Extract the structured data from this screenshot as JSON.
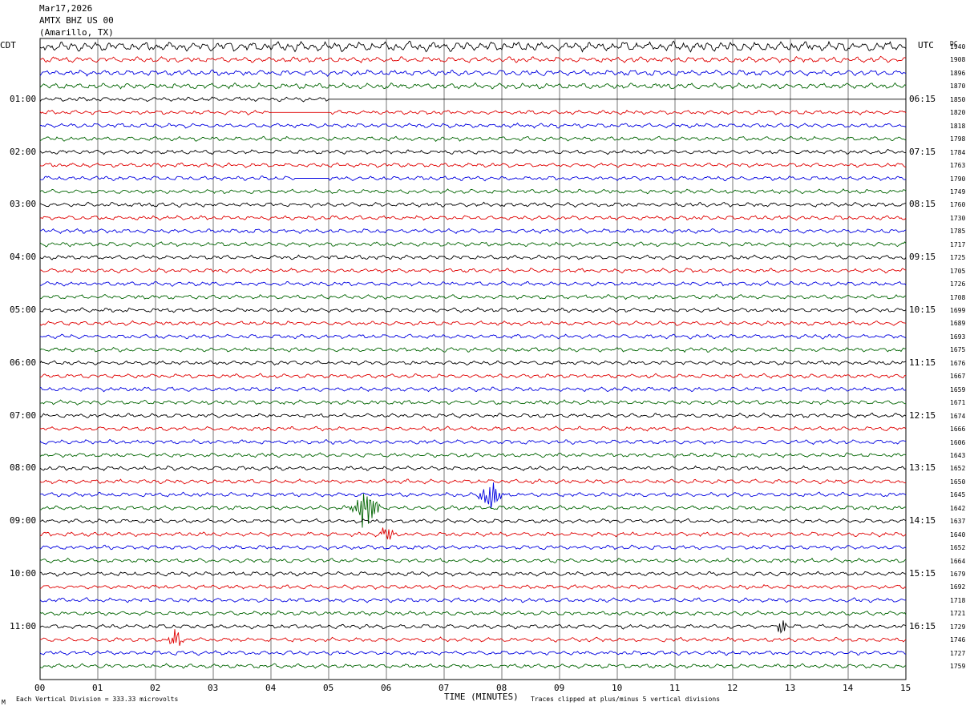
{
  "header": {
    "date": "Mar17,2026",
    "station": "AMTX BHZ US 00",
    "location": "(Amarillo, TX)"
  },
  "labels": {
    "left_zone": "CDT",
    "right_zone": "UTC",
    "dc_header": "DC",
    "xlabel": "TIME (MINUTES)",
    "scale_note": "Each Vertical Division =  333.33 microvolts",
    "clip_note": "Traces clipped at plus/minus 5 vertical divisions",
    "corner_mark": "M"
  },
  "chart_data": {
    "type": "line",
    "title": "",
    "xlabel": "TIME (MINUTES)",
    "ylabel": "",
    "x_ticks": [
      "00",
      "01",
      "02",
      "03",
      "04",
      "05",
      "06",
      "07",
      "08",
      "09",
      "10",
      "11",
      "12",
      "13",
      "14",
      "15"
    ],
    "xlim": [
      0,
      15
    ],
    "grid": "vertical lines every minute",
    "trace_colors": [
      "#000000",
      "#e00000",
      "#0000e0",
      "#006400"
    ],
    "num_traces": 48,
    "trace_minutes": 15,
    "left_time_labels": [
      "01:00",
      "02:00",
      "03:00",
      "04:00",
      "05:00",
      "06:00",
      "07:00",
      "08:00",
      "09:00",
      "10:00",
      "11:00"
    ],
    "right_time_labels": [
      "06:15",
      "07:15",
      "08:15",
      "09:15",
      "10:15",
      "11:15",
      "12:15",
      "13:15",
      "14:15",
      "15:15",
      "16:15"
    ],
    "dc_offsets": [
      "1940",
      "1908",
      "1896",
      "1870",
      "1850",
      "1820",
      "1818",
      "1798",
      "1784",
      "1763",
      "1790",
      "1749",
      "1760",
      "1730",
      "1785",
      "1717",
      "1725",
      "1705",
      "1726",
      "1708",
      "1699",
      "1689",
      "1693",
      "1675",
      "1676",
      "1667",
      "1659",
      "1671",
      "1674",
      "1666",
      "1606",
      "1643",
      "1652",
      "1650",
      "1645",
      "1642",
      "1637",
      "1640",
      "1652",
      "1664",
      "1679",
      "1692",
      "1718",
      "1721",
      "1729",
      "1746",
      "1727",
      "1759"
    ],
    "events": [
      {
        "trace": 35,
        "minute": 5.65,
        "duration": 0.7,
        "amplitude": 3.2
      },
      {
        "trace": 34,
        "minute": 7.8,
        "duration": 0.6,
        "amplitude": 2.6
      },
      {
        "trace": 37,
        "minute": 6.0,
        "duration": 0.4,
        "amplitude": 1.6
      },
      {
        "trace": 45,
        "minute": 2.35,
        "duration": 0.45,
        "amplitude": 1.6
      },
      {
        "trace": 44,
        "minute": 12.85,
        "duration": 0.25,
        "amplitude": 1.4
      }
    ],
    "gaps": [
      {
        "trace": 5,
        "start_minute": 4.0,
        "end_minute": 5.0
      },
      {
        "trace": 4,
        "start_minute": 5.0,
        "end_minute": 15.0
      },
      {
        "trace": 10,
        "start_minute": 4.4,
        "end_minute": 5.0
      }
    ]
  }
}
